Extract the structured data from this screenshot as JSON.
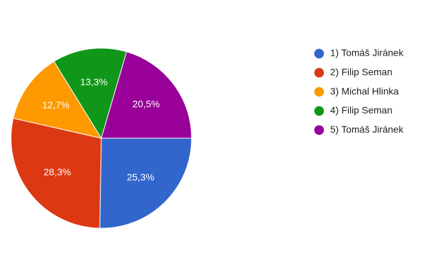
{
  "chart_data": {
    "type": "pie",
    "categories": [
      "1) Tomáš Jiránek",
      "2) Filip Seman",
      "3) Michal Hlinka",
      "4) Filip Seman",
      "5) Tomáš Jiránek"
    ],
    "values": [
      25.3,
      28.3,
      12.7,
      13.3,
      20.5
    ],
    "value_labels": [
      "25,3%",
      "28,3%",
      "12,7%",
      "13,3%",
      "20,5%"
    ],
    "colors": [
      "#3366cc",
      "#dc3912",
      "#ff9900",
      "#109618",
      "#990099"
    ],
    "legend": "right"
  }
}
